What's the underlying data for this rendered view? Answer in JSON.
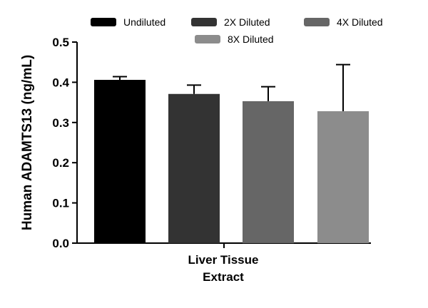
{
  "chart_data": {
    "type": "bar",
    "title": "",
    "xlabel": "",
    "ylabel": "Human ADAMTS13 (ng/mL)",
    "ylim": [
      0,
      0.5
    ],
    "yticks": [
      "0.0",
      "0.1",
      "0.2",
      "0.3",
      "0.4",
      "0.5"
    ],
    "ytick_values": [
      0,
      0.1,
      0.2,
      0.3,
      0.4,
      0.5
    ],
    "categories": [
      "Liver Tissue",
      "Extract"
    ],
    "grid": false,
    "legend_position": "top",
    "series": [
      {
        "name": "Undiluted",
        "value": 0.406,
        "error": 0.008,
        "color": "#000000"
      },
      {
        "name": "2X Diluted",
        "value": 0.371,
        "error": 0.022,
        "color": "#333333"
      },
      {
        "name": "4X Diluted",
        "value": 0.353,
        "error": 0.036,
        "color": "#666666"
      },
      {
        "name": "8X Diluted",
        "value": 0.328,
        "error": 0.116,
        "color": "#8c8c8c"
      }
    ]
  }
}
